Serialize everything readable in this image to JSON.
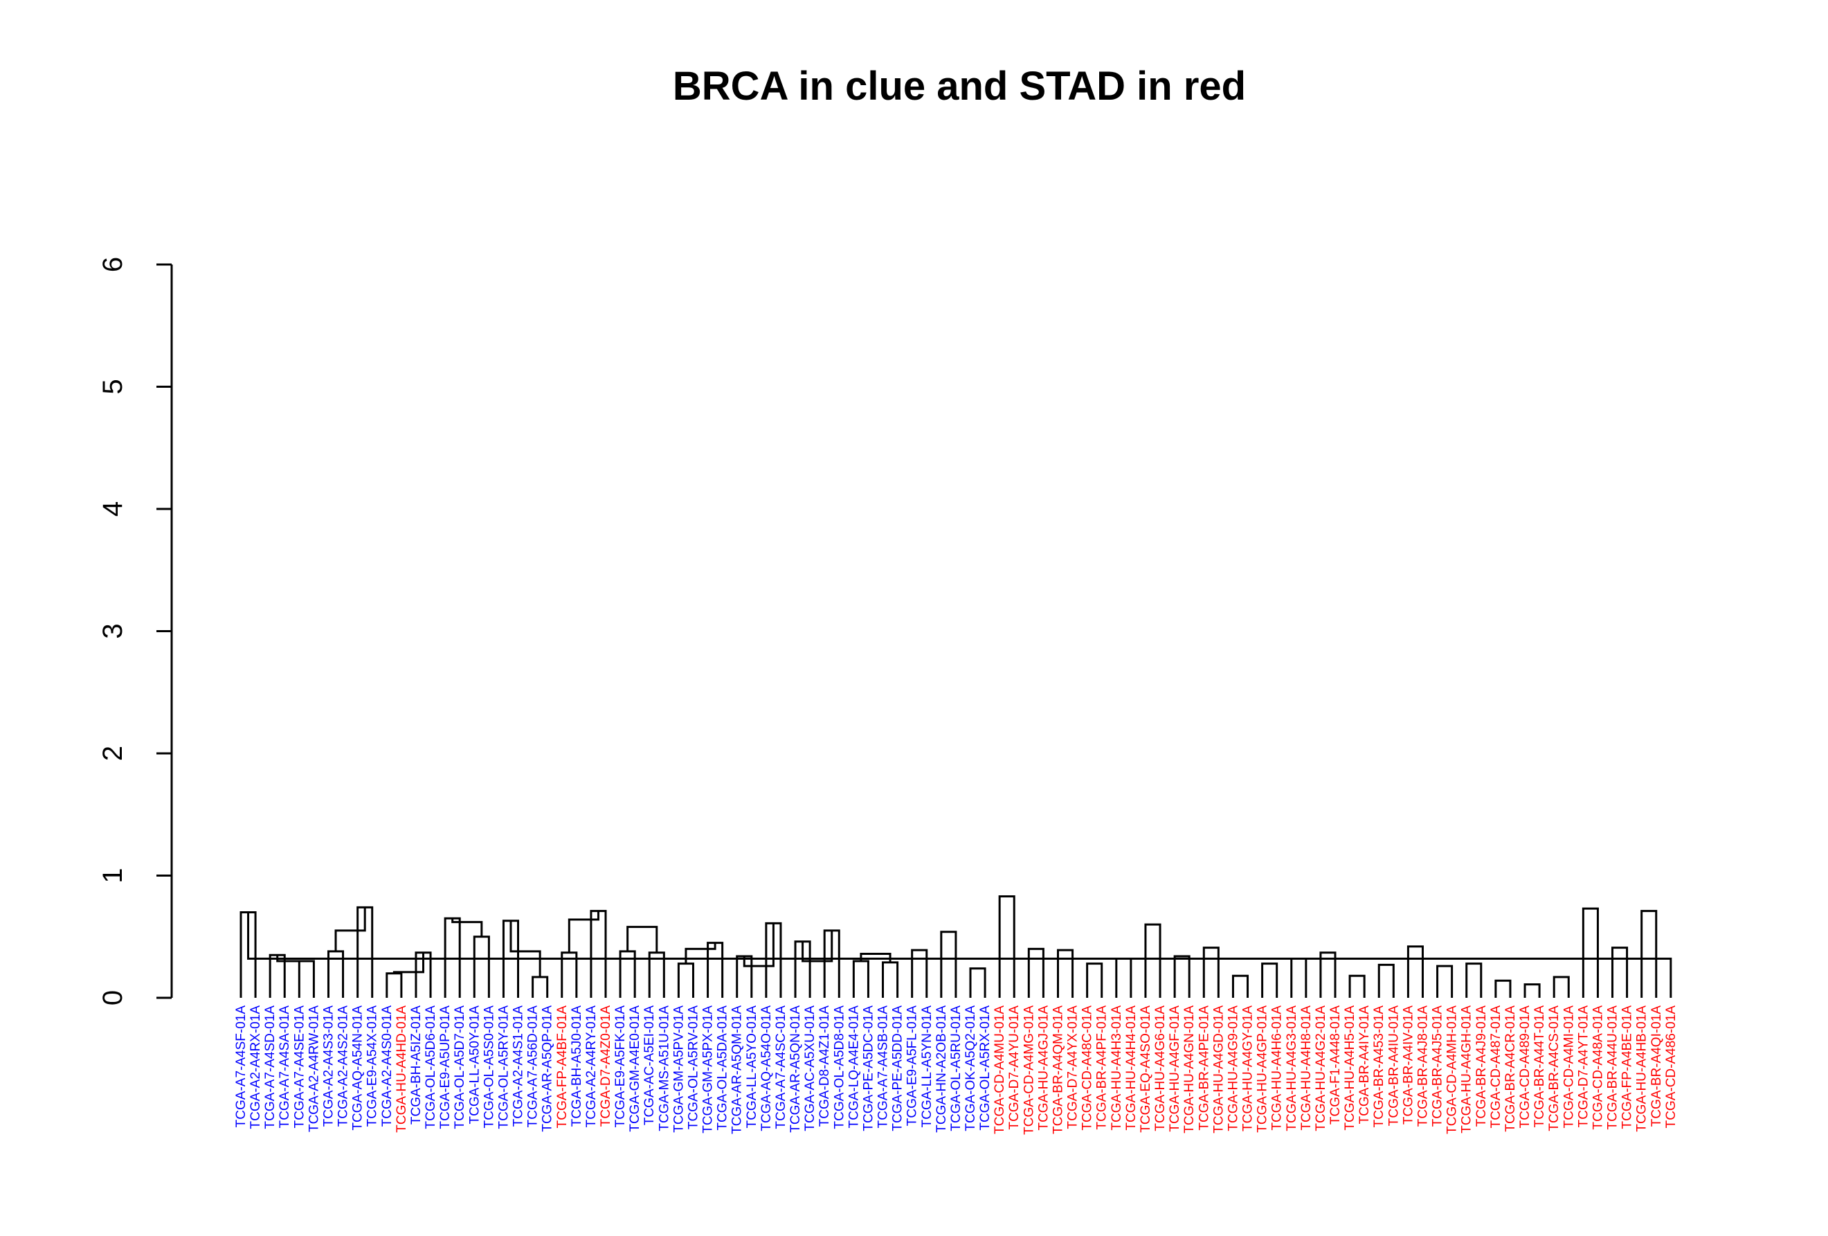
{
  "title": "BRCA in clue and STAD in red",
  "colors": {
    "BRCA": "#0000ff",
    "STAD": "#ff0000",
    "tree": "#000000"
  },
  "chart_data": {
    "type": "dendrogram",
    "title": "BRCA in clue and STAD in red",
    "ylabel": "",
    "ylim": [
      0,
      6.6
    ],
    "yticks": [
      0,
      1,
      2,
      3,
      4,
      5,
      6
    ],
    "leaves": [
      {
        "label": "TCGA-A7-A4SF-01A",
        "group": "BRCA"
      },
      {
        "label": "TCGA-A2-A4RX-01A",
        "group": "BRCA"
      },
      {
        "label": "TCGA-A7-A4SD-01A",
        "group": "BRCA"
      },
      {
        "label": "TCGA-A7-A4SA-01A",
        "group": "BRCA"
      },
      {
        "label": "TCGA-A7-A4SE-01A",
        "group": "BRCA"
      },
      {
        "label": "TCGA-A2-A4RW-01A",
        "group": "BRCA"
      },
      {
        "label": "TCGA-A2-A4S3-01A",
        "group": "BRCA"
      },
      {
        "label": "TCGA-A2-A4S2-01A",
        "group": "BRCA"
      },
      {
        "label": "TCGA-AQ-A54N-01A",
        "group": "BRCA"
      },
      {
        "label": "TCGA-E9-A54X-01A",
        "group": "BRCA"
      },
      {
        "label": "TCGA-A2-A4S0-01A",
        "group": "BRCA"
      },
      {
        "label": "TCGA-HU-A4HD-01A",
        "group": "STAD"
      },
      {
        "label": "TCGA-BH-A5IZ-01A",
        "group": "BRCA"
      },
      {
        "label": "TCGA-OL-A5D6-01A",
        "group": "BRCA"
      },
      {
        "label": "TCGA-E9-A5UP-01A",
        "group": "BRCA"
      },
      {
        "label": "TCGA-OL-A5D7-01A",
        "group": "BRCA"
      },
      {
        "label": "TCGA-LL-A50Y-01A",
        "group": "BRCA"
      },
      {
        "label": "TCGA-OL-A5S0-01A",
        "group": "BRCA"
      },
      {
        "label": "TCGA-OL-A5RY-01A",
        "group": "BRCA"
      },
      {
        "label": "TCGA-A2-A4S1-01A",
        "group": "BRCA"
      },
      {
        "label": "TCGA-A7-A56D-01A",
        "group": "BRCA"
      },
      {
        "label": "TCGA-AR-A5QP-01A",
        "group": "BRCA"
      },
      {
        "label": "TCGA-FP-A4BF-01A",
        "group": "STAD"
      },
      {
        "label": "TCGA-BH-A5J0-01A",
        "group": "BRCA"
      },
      {
        "label": "TCGA-A2-A4RY-01A",
        "group": "BRCA"
      },
      {
        "label": "TCGA-D7-A4Z0-01A",
        "group": "STAD"
      },
      {
        "label": "TCGA-E9-A5FK-01A",
        "group": "BRCA"
      },
      {
        "label": "TCGA-GM-A4E0-01A",
        "group": "BRCA"
      },
      {
        "label": "TCGA-AC-A5EI-01A",
        "group": "BRCA"
      },
      {
        "label": "TCGA-MS-A51U-01A",
        "group": "BRCA"
      },
      {
        "label": "TCGA-GM-A5PV-01A",
        "group": "BRCA"
      },
      {
        "label": "TCGA-OL-A5RV-01A",
        "group": "BRCA"
      },
      {
        "label": "TCGA-GM-A5PX-01A",
        "group": "BRCA"
      },
      {
        "label": "TCGA-OL-A5DA-01A",
        "group": "BRCA"
      },
      {
        "label": "TCGA-AR-A5QM-01A",
        "group": "BRCA"
      },
      {
        "label": "TCGA-LL-A5YO-01A",
        "group": "BRCA"
      },
      {
        "label": "TCGA-AQ-A54O-01A",
        "group": "BRCA"
      },
      {
        "label": "TCGA-A7-A4SC-01A",
        "group": "BRCA"
      },
      {
        "label": "TCGA-AR-A5QN-01A",
        "group": "BRCA"
      },
      {
        "label": "TCGA-AC-A5XU-01A",
        "group": "BRCA"
      },
      {
        "label": "TCGA-D8-A4Z1-01A",
        "group": "BRCA"
      },
      {
        "label": "TCGA-OL-A5D8-01A",
        "group": "BRCA"
      },
      {
        "label": "TCGA-LQ-A4E4-01A",
        "group": "BRCA"
      },
      {
        "label": "TCGA-PE-A5DC-01A",
        "group": "BRCA"
      },
      {
        "label": "TCGA-A7-A4SB-01A",
        "group": "BRCA"
      },
      {
        "label": "TCGA-PE-A5DD-01A",
        "group": "BRCA"
      },
      {
        "label": "TCGA-E9-A5FL-01A",
        "group": "BRCA"
      },
      {
        "label": "TCGA-LL-A5YN-01A",
        "group": "BRCA"
      },
      {
        "label": "TCGA-HN-A2OB-01A",
        "group": "BRCA"
      },
      {
        "label": "TCGA-OL-A5RU-01A",
        "group": "BRCA"
      },
      {
        "label": "TCGA-OK-A5Q2-01A",
        "group": "BRCA"
      },
      {
        "label": "TCGA-OL-A5RX-01A",
        "group": "BRCA"
      },
      {
        "label": "TCGA-CD-A4MU-01A",
        "group": "STAD"
      },
      {
        "label": "TCGA-D7-A4YU-01A",
        "group": "STAD"
      },
      {
        "label": "TCGA-CD-A4MG-01A",
        "group": "STAD"
      },
      {
        "label": "TCGA-HU-A4GJ-01A",
        "group": "STAD"
      },
      {
        "label": "TCGA-BR-A4QM-01A",
        "group": "STAD"
      },
      {
        "label": "TCGA-D7-A4YX-01A",
        "group": "STAD"
      },
      {
        "label": "TCGA-CD-A48C-01A",
        "group": "STAD"
      },
      {
        "label": "TCGA-BR-A4PF-01A",
        "group": "STAD"
      },
      {
        "label": "TCGA-HU-A4H3-01A",
        "group": "STAD"
      },
      {
        "label": "TCGA-HU-A4H4-01A",
        "group": "STAD"
      },
      {
        "label": "TCGA-EQ-A4SO-01A",
        "group": "STAD"
      },
      {
        "label": "TCGA-HU-A4G6-01A",
        "group": "STAD"
      },
      {
        "label": "TCGA-HU-A4GF-01A",
        "group": "STAD"
      },
      {
        "label": "TCGA-HU-A4GN-01A",
        "group": "STAD"
      },
      {
        "label": "TCGA-BR-A4PE-01A",
        "group": "STAD"
      },
      {
        "label": "TCGA-HU-A4GD-01A",
        "group": "STAD"
      },
      {
        "label": "TCGA-HU-A4G9-01A",
        "group": "STAD"
      },
      {
        "label": "TCGA-HU-A4GY-01A",
        "group": "STAD"
      },
      {
        "label": "TCGA-HU-A4GP-01A",
        "group": "STAD"
      },
      {
        "label": "TCGA-HU-A4H6-01A",
        "group": "STAD"
      },
      {
        "label": "TCGA-HU-A4G3-01A",
        "group": "STAD"
      },
      {
        "label": "TCGA-HU-A4H8-01A",
        "group": "STAD"
      },
      {
        "label": "TCGA-HU-A4G2-01A",
        "group": "STAD"
      },
      {
        "label": "TCGA-F1-A448-01A",
        "group": "STAD"
      },
      {
        "label": "TCGA-HU-A4H5-01A",
        "group": "STAD"
      },
      {
        "label": "TCGA-BR-A4IY-01A",
        "group": "STAD"
      },
      {
        "label": "TCGA-BR-A453-01A",
        "group": "STAD"
      },
      {
        "label": "TCGA-BR-A4IU-01A",
        "group": "STAD"
      },
      {
        "label": "TCGA-BR-A4IV-01A",
        "group": "STAD"
      },
      {
        "label": "TCGA-BR-A4J8-01A",
        "group": "STAD"
      },
      {
        "label": "TCGA-BR-A4J5-01A",
        "group": "STAD"
      },
      {
        "label": "TCGA-CD-A4MH-01A",
        "group": "STAD"
      },
      {
        "label": "TCGA-HU-A4GH-01A",
        "group": "STAD"
      },
      {
        "label": "TCGA-BR-A4J9-01A",
        "group": "STAD"
      },
      {
        "label": "TCGA-CD-A487-01A",
        "group": "STAD"
      },
      {
        "label": "TCGA-BR-A4CR-01A",
        "group": "STAD"
      },
      {
        "label": "TCGA-CD-A489-01A",
        "group": "STAD"
      },
      {
        "label": "TCGA-BR-A44T-01A",
        "group": "STAD"
      },
      {
        "label": "TCGA-BR-A4CS-01A",
        "group": "STAD"
      },
      {
        "label": "TCGA-CD-A4MI-01A",
        "group": "STAD"
      },
      {
        "label": "TCGA-D7-A4YT-01A",
        "group": "STAD"
      },
      {
        "label": "TCGA-CD-A48A-01A",
        "group": "STAD"
      },
      {
        "label": "TCGA-BR-A44U-01A",
        "group": "STAD"
      },
      {
        "label": "TCGA-FP-A4BE-01A",
        "group": "STAD"
      },
      {
        "label": "TCGA-HU-A4HB-01A",
        "group": "STAD"
      },
      {
        "label": "TCGA-BR-A4QI-01A",
        "group": "STAD"
      },
      {
        "label": "TCGA-CD-A486-01A",
        "group": "STAD"
      }
    ],
    "merges": [
      {
        "a": 0,
        "b": 1,
        "h": 0.7
      },
      {
        "a": 2,
        "b": 3,
        "h": 0.35
      },
      {
        "a": 4,
        "b": 5,
        "h": 0.3
      },
      {
        "a": 6,
        "b": 7,
        "h": 0.38
      },
      {
        "a": 8,
        "b": 9,
        "h": 0.74
      },
      {
        "a": 10,
        "b": 11,
        "h": 0.2
      },
      {
        "a": 12,
        "b": 13,
        "h": 0.37
      },
      {
        "a": 14,
        "b": 15,
        "h": 0.65
      },
      {
        "a": 16,
        "b": 17,
        "h": 0.5
      },
      {
        "a": 18,
        "b": 19,
        "h": 0.63
      },
      {
        "a": 20,
        "b": 21,
        "h": 0.17
      },
      {
        "a": 22,
        "b": 23,
        "h": 0.37
      },
      {
        "a": 24,
        "b": 25,
        "h": 0.71
      },
      {
        "a": 26,
        "b": 27,
        "h": 0.38
      },
      {
        "a": 28,
        "b": 29,
        "h": 0.37
      },
      {
        "a": 30,
        "b": 31,
        "h": 0.28
      },
      {
        "a": 32,
        "b": 33,
        "h": 0.45
      },
      {
        "a": 34,
        "b": 35,
        "h": 0.34
      },
      {
        "a": 36,
        "b": 37,
        "h": 0.61
      },
      {
        "a": 38,
        "b": 39,
        "h": 0.46
      },
      {
        "a": 40,
        "b": 41,
        "h": 0.55
      },
      {
        "a": 42,
        "b": 43,
        "h": 0.3
      },
      {
        "a": 44,
        "b": 45,
        "h": 0.29
      },
      {
        "a": 46,
        "b": 47,
        "h": 0.39
      },
      {
        "a": 48,
        "b": 49,
        "h": 0.54
      },
      {
        "a": 50,
        "b": 51,
        "h": 0.24
      },
      {
        "a": 52,
        "b": 53,
        "h": 0.83
      },
      {
        "a": 54,
        "b": 55,
        "h": 0.4
      },
      {
        "a": 56,
        "b": 57,
        "h": 0.39
      },
      {
        "a": 58,
        "b": 59,
        "h": 0.28
      },
      {
        "a": 60,
        "b": 61,
        "h": 0.32
      },
      {
        "a": 62,
        "b": 63,
        "h": 0.6
      },
      {
        "a": 64,
        "b": 65,
        "h": 0.34
      },
      {
        "a": 66,
        "b": 67,
        "h": 0.41
      },
      {
        "a": 68,
        "b": 69,
        "h": 0.18
      },
      {
        "a": 70,
        "b": 71,
        "h": 0.28
      },
      {
        "a": 72,
        "b": 73,
        "h": 0.32
      },
      {
        "a": 74,
        "b": 75,
        "h": 0.37
      },
      {
        "a": 76,
        "b": 77,
        "h": 0.18
      },
      {
        "a": 78,
        "b": 79,
        "h": 0.27
      },
      {
        "a": 80,
        "b": 81,
        "h": 0.42
      },
      {
        "a": 82,
        "b": 83,
        "h": 0.26
      },
      {
        "a": 84,
        "b": 85,
        "h": 0.28
      },
      {
        "a": 86,
        "b": 87,
        "h": 0.14
      },
      {
        "a": 88,
        "b": 89,
        "h": 0.11
      },
      {
        "a": 90,
        "b": 91,
        "h": 0.17
      },
      {
        "a": 92,
        "b": 93,
        "h": 0.73
      },
      {
        "a": 94,
        "b": 95,
        "h": 0.41
      },
      {
        "a": 96,
        "b": 97,
        "h": 0.71
      },
      {
        "a": 98,
        "b": 99,
        "h": 0.32
      },
      {
        "a": 100,
        "b": 101,
        "h": 0.3
      },
      {
        "a": 102,
        "b": 103,
        "h": 0.55
      },
      {
        "a": 104,
        "b": 105,
        "h": 0.21
      },
      {
        "a": 106,
        "b": 107,
        "h": 0.62
      },
      {
        "a": 108,
        "b": 109,
        "h": 0.38
      },
      {
        "a": 110,
        "b": 111,
        "h": 0.64
      },
      {
        "a": 112,
        "b": 113,
        "h": 0.58
      },
      {
        "a": 114,
        "b": 115,
        "h": 0.4
      },
      {
        "a": 116,
        "b": 117,
        "h": 0.26
      },
      {
        "a": 118,
        "b": 119,
        "h": 0.3
      },
      {
        "a": 120,
        "b": 121,
        "h": 0.36
      }
    ]
  }
}
